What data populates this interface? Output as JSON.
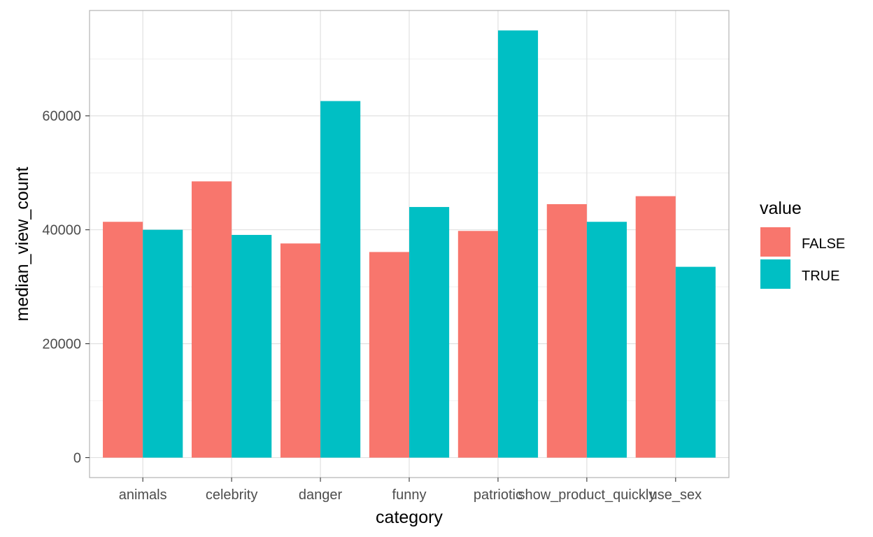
{
  "chart_data": {
    "type": "bar",
    "xlabel": "category",
    "ylabel": "median_view_count",
    "categories": [
      "animals",
      "celebrity",
      "danger",
      "funny",
      "patriotic",
      "show_product_quickly",
      "use_sex"
    ],
    "series": [
      {
        "name": "FALSE",
        "color": "#F8766D",
        "values": [
          41400,
          48500,
          37600,
          36100,
          39800,
          44500,
          45900
        ]
      },
      {
        "name": "TRUE",
        "color": "#00BFC4",
        "values": [
          40000,
          39100,
          62600,
          44000,
          75000,
          41400,
          33500
        ]
      }
    ],
    "ylim": [
      -3500,
      78500
    ],
    "yticks": [
      0,
      20000,
      40000,
      60000
    ],
    "yticks_labels": [
      "0",
      "20000",
      "40000",
      "60000"
    ],
    "grid": true,
    "legend": {
      "title": "value",
      "position": "right",
      "items": [
        "FALSE",
        "TRUE"
      ]
    }
  }
}
